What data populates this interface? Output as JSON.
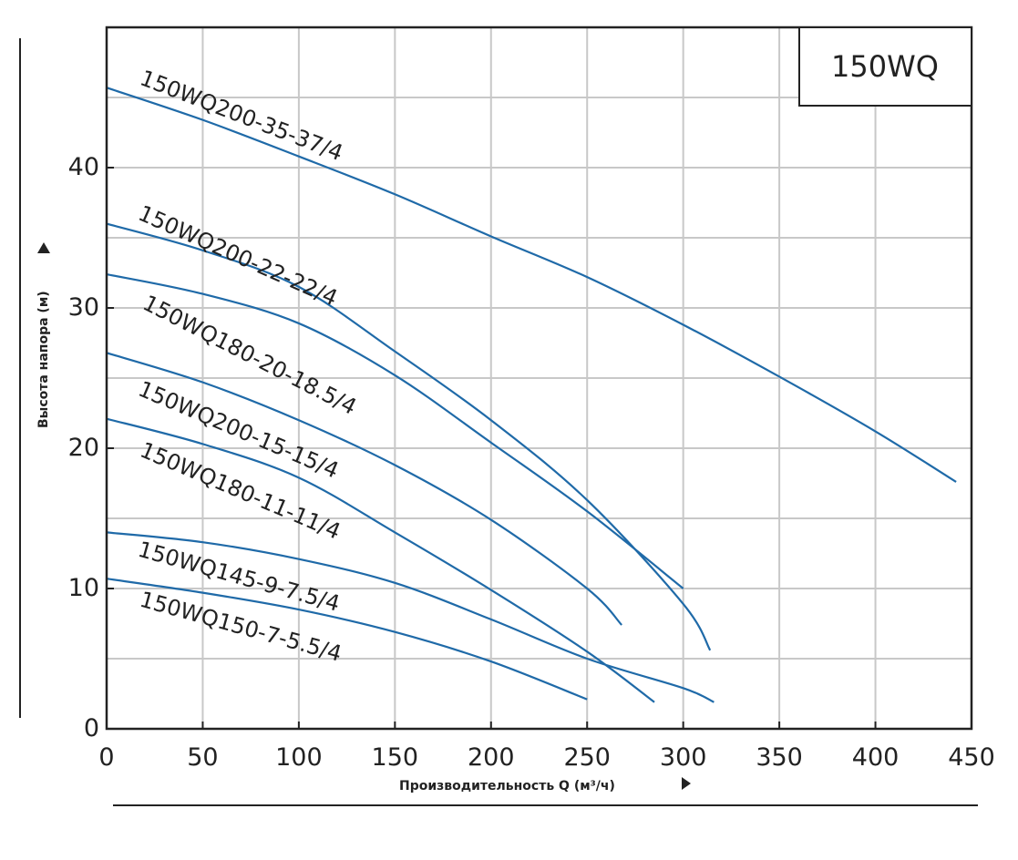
{
  "chart_data": {
    "type": "line",
    "title": "150WQ",
    "xlabel": "Производительность Q (м³/ч)",
    "ylabel": "Высота напора (м)",
    "xlim": [
      0,
      450
    ],
    "ylim": [
      0,
      50
    ],
    "xticks": [
      0,
      50,
      100,
      150,
      200,
      250,
      300,
      350,
      400,
      450
    ],
    "yticks": [
      0,
      10,
      20,
      30,
      40
    ],
    "grid": true,
    "line_color": "#1f6aa8",
    "series": [
      {
        "name": "150WQ200-35-37/4",
        "x": [
          0,
          50,
          100,
          150,
          200,
          250,
          300,
          350,
          400,
          442
        ],
        "y": [
          45.7,
          43.4,
          40.8,
          38.1,
          35.1,
          32.2,
          28.8,
          25.1,
          21.2,
          17.6
        ]
      },
      {
        "name": "150WQ200-22-22/4",
        "x": [
          0,
          50,
          100,
          150,
          200,
          250,
          300,
          314
        ],
        "y": [
          36.0,
          34.1,
          31.5,
          26.9,
          22.0,
          16.3,
          8.9,
          5.6
        ]
      },
      {
        "name": "150WQ180-20-18.5/4",
        "x": [
          0,
          50,
          100,
          150,
          200,
          250,
          300
        ],
        "y": [
          32.4,
          31.0,
          28.9,
          25.2,
          20.4,
          15.5,
          10.0
        ]
      },
      {
        "name": "150WQ200-15-15/4",
        "x": [
          0,
          50,
          100,
          150,
          200,
          250,
          268
        ],
        "y": [
          26.8,
          24.7,
          22.0,
          18.8,
          14.9,
          10.0,
          7.4
        ]
      },
      {
        "name": "150WQ180-11-11/4",
        "x": [
          0,
          50,
          100,
          150,
          200,
          250,
          285
        ],
        "y": [
          22.1,
          20.3,
          17.9,
          14.0,
          9.9,
          5.5,
          1.9
        ]
      },
      {
        "name": "150WQ145-9-7.5/4",
        "x": [
          0,
          50,
          100,
          150,
          200,
          250,
          300,
          316
        ],
        "y": [
          14.0,
          13.3,
          12.1,
          10.4,
          7.8,
          5.0,
          2.9,
          1.9
        ]
      },
      {
        "name": "150WQ150-7-5.5/4",
        "x": [
          0,
          50,
          100,
          150,
          200,
          250
        ],
        "y": [
          10.7,
          9.7,
          8.5,
          6.9,
          4.8,
          2.1
        ]
      }
    ]
  }
}
